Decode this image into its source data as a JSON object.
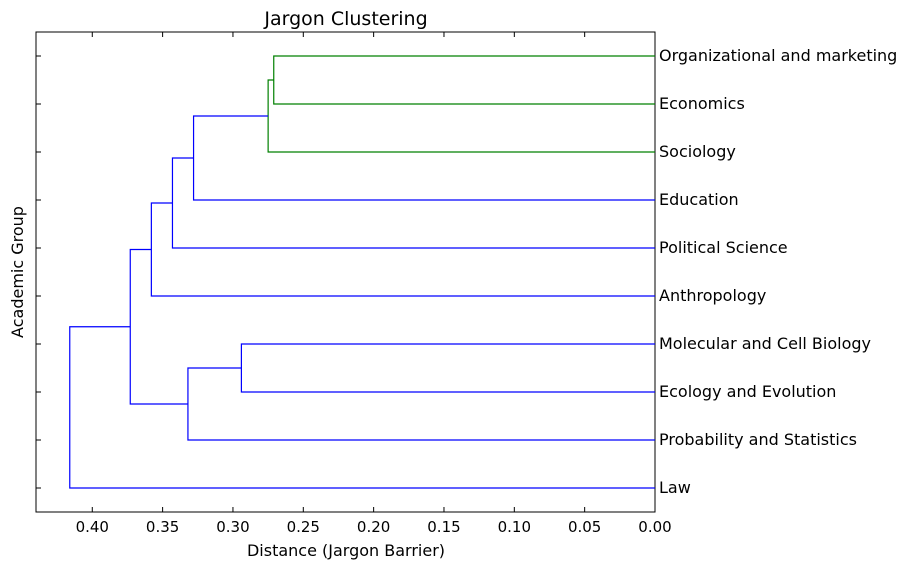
{
  "chart_data": {
    "type": "dendrogram",
    "title": "Jargon Clustering",
    "xlabel": "Distance (Jargon Barrier)",
    "ylabel": "Academic Group",
    "xlim": [
      0.44,
      0.0
    ],
    "x_ticks": [
      "0.40",
      "0.35",
      "0.30",
      "0.25",
      "0.20",
      "0.15",
      "0.10",
      "0.05",
      "0.00"
    ],
    "x_tick_values": [
      0.4,
      0.35,
      0.3,
      0.25,
      0.2,
      0.15,
      0.1,
      0.05,
      0.0
    ],
    "orientation": "left",
    "leaves": [
      "Organizational and marketing",
      "Economics",
      "Sociology",
      "Education",
      "Political Science",
      "Anthropology",
      "Molecular and Cell Biology",
      "Ecology and Evolution",
      "Probability and Statistics",
      "Law"
    ],
    "colors": {
      "cluster": "#008000",
      "above_threshold": "#0000ff"
    },
    "merges": [
      {
        "name": "merge-1",
        "left": "Organizational and marketing",
        "right": "Economics",
        "distance": 0.271,
        "color": "#008000"
      },
      {
        "name": "merge-2",
        "left": "merge-1",
        "right": "Sociology",
        "distance": 0.275,
        "color": "#008000"
      },
      {
        "name": "merge-3",
        "left": "Molecular and Cell Biology",
        "right": "Ecology and Evolution",
        "distance": 0.294,
        "color": "#0000ff"
      },
      {
        "name": "merge-4",
        "left": "merge-2",
        "right": "Education",
        "distance": 0.328,
        "color": "#0000ff"
      },
      {
        "name": "merge-5",
        "left": "merge-3",
        "right": "Probability and Statistics",
        "distance": 0.332,
        "color": "#0000ff"
      },
      {
        "name": "merge-6",
        "left": "merge-4",
        "right": "Political Science",
        "distance": 0.343,
        "color": "#0000ff"
      },
      {
        "name": "merge-7",
        "left": "merge-6",
        "right": "Anthropology",
        "distance": 0.358,
        "color": "#0000ff"
      },
      {
        "name": "merge-8",
        "left": "merge-7",
        "right": "merge-5",
        "distance": 0.373,
        "color": "#0000ff"
      },
      {
        "name": "merge-9",
        "left": "merge-8",
        "right": "Law",
        "distance": 0.416,
        "color": "#0000ff"
      }
    ]
  }
}
